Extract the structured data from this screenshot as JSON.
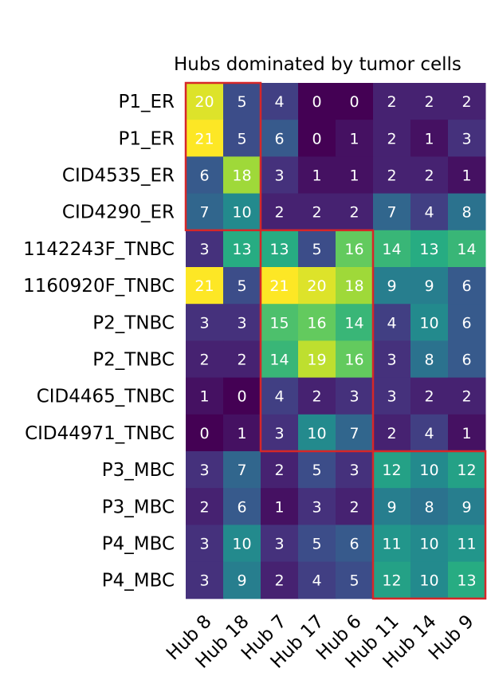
{
  "chart_data": {
    "type": "heatmap",
    "title": "Hubs dominated by tumor cells",
    "rows": [
      "P1_ER",
      "P1_ER",
      "CID4535_ER",
      "CID4290_ER",
      "1142243F_TNBC",
      "1160920F_TNBC",
      "P2_TNBC",
      "P2_TNBC",
      "CID4465_TNBC",
      "CID44971_TNBC",
      "P3_MBC",
      "P3_MBC",
      "P4_MBC",
      "P4_MBC"
    ],
    "columns": [
      "Hub 8",
      "Hub 18",
      "Hub 7",
      "Hub 17",
      "Hub 6",
      "Hub 11",
      "Hub 14",
      "Hub 9"
    ],
    "values": [
      [
        20,
        5,
        4,
        0,
        0,
        2,
        2,
        2
      ],
      [
        21,
        5,
        6,
        0,
        1,
        2,
        1,
        3
      ],
      [
        6,
        18,
        3,
        1,
        1,
        2,
        2,
        1
      ],
      [
        7,
        10,
        2,
        2,
        2,
        7,
        4,
        8
      ],
      [
        3,
        13,
        13,
        5,
        16,
        14,
        13,
        14
      ],
      [
        21,
        5,
        21,
        20,
        18,
        9,
        9,
        6
      ],
      [
        3,
        3,
        15,
        16,
        14,
        4,
        10,
        6
      ],
      [
        2,
        2,
        14,
        19,
        16,
        3,
        8,
        6
      ],
      [
        1,
        0,
        4,
        2,
        3,
        3,
        2,
        2
      ],
      [
        0,
        1,
        3,
        10,
        7,
        2,
        4,
        1
      ],
      [
        3,
        7,
        2,
        5,
        3,
        12,
        10,
        12
      ],
      [
        2,
        6,
        1,
        3,
        2,
        9,
        8,
        9
      ],
      [
        3,
        10,
        3,
        5,
        6,
        11,
        10,
        11
      ],
      [
        3,
        9,
        2,
        4,
        5,
        12,
        10,
        13
      ]
    ],
    "colormap": "viridis",
    "vmin": 0,
    "vmax": 21,
    "highlight_boxes": [
      {
        "name": "ER",
        "row_start": 0,
        "row_end": 3,
        "col_start": 0,
        "col_end": 1
      },
      {
        "name": "TNBC",
        "row_start": 4,
        "row_end": 9,
        "col_start": 2,
        "col_end": 4
      },
      {
        "name": "MBC",
        "row_start": 10,
        "row_end": 13,
        "col_start": 5,
        "col_end": 7
      }
    ],
    "highlight_color": "#d62728"
  }
}
